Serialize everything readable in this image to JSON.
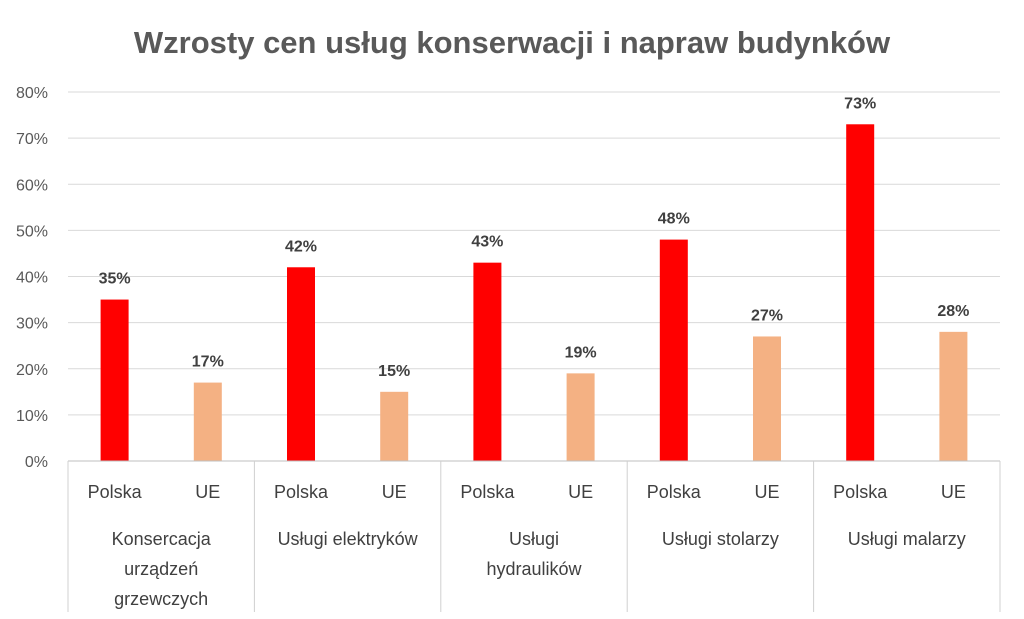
{
  "chart_data": {
    "type": "bar",
    "title": "Wzrosty cen usług konserwacji i napraw budynków",
    "xlabel": "",
    "ylabel": "",
    "ylim": [
      0,
      80
    ],
    "yticks": [
      "0%",
      "10%",
      "20%",
      "30%",
      "40%",
      "50%",
      "60%",
      "70%",
      "80%"
    ],
    "grid": true,
    "legend": "none",
    "subcategories": [
      "Polska",
      "UE"
    ],
    "colors": {
      "Polska": "#FF0000",
      "UE": "#F4B183"
    },
    "groups": [
      {
        "label_lines": [
          "Konsercacja",
          "urządzeń",
          "grzewczych"
        ],
        "values": [
          35,
          17
        ],
        "labels": [
          "35%",
          "17%"
        ]
      },
      {
        "label_lines": [
          "Usługi elektryków"
        ],
        "values": [
          42,
          15
        ],
        "labels": [
          "42%",
          "15%"
        ]
      },
      {
        "label_lines": [
          "Usługi",
          "hydraulików"
        ],
        "values": [
          43,
          19
        ],
        "labels": [
          "43%",
          "19%"
        ]
      },
      {
        "label_lines": [
          "Usługi stolarzy"
        ],
        "values": [
          48,
          27
        ],
        "labels": [
          "48%",
          "27%"
        ]
      },
      {
        "label_lines": [
          "Usługi malarzy"
        ],
        "values": [
          73,
          28
        ],
        "labels": [
          "73%",
          "28%"
        ]
      }
    ]
  }
}
